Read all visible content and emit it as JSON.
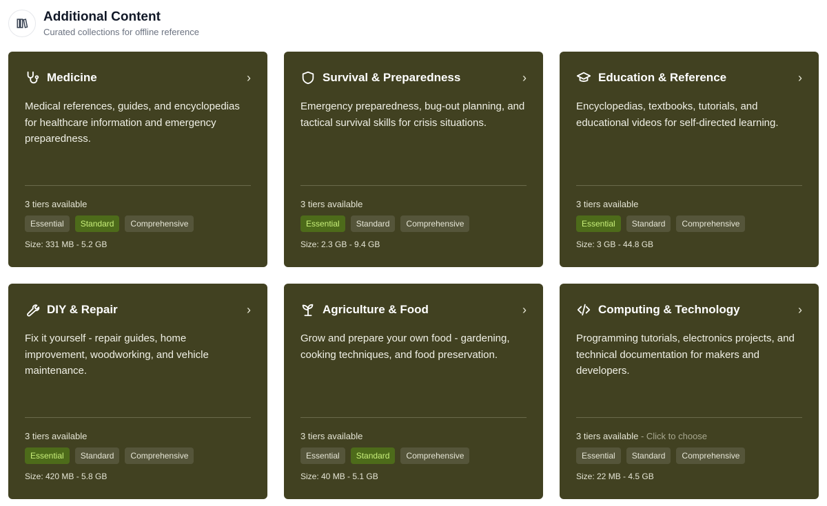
{
  "header": {
    "title": "Additional Content",
    "subtitle": "Curated collections for offline reference",
    "icon": "library-icon"
  },
  "cards": [
    {
      "title": "Medicine",
      "icon": "stethoscope-icon",
      "description": "Medical references, guides, and encyclopedias for healthcare information and emergency preparedness.",
      "tiers": "3 tiers available",
      "hint": "",
      "badges": [
        "Essential",
        "Standard",
        "Comprehensive"
      ],
      "selected": 1,
      "size": "Size: 331 MB - 5.2 GB"
    },
    {
      "title": "Survival & Preparedness",
      "icon": "shield-icon",
      "description": "Emergency preparedness, bug-out planning, and tactical survival skills for crisis situations.",
      "tiers": "3 tiers available",
      "hint": "",
      "badges": [
        "Essential",
        "Standard",
        "Comprehensive"
      ],
      "selected": 0,
      "size": "Size: 2.3 GB - 9.4 GB"
    },
    {
      "title": "Education & Reference",
      "icon": "graduation-cap-icon",
      "description": "Encyclopedias, textbooks, tutorials, and educational videos for self-directed learning.",
      "tiers": "3 tiers available",
      "hint": "",
      "badges": [
        "Essential",
        "Standard",
        "Comprehensive"
      ],
      "selected": 0,
      "size": "Size: 3 GB - 44.8 GB"
    },
    {
      "title": "DIY & Repair",
      "icon": "wrench-icon",
      "description": "Fix it yourself - repair guides, home improvement, woodworking, and vehicle maintenance.",
      "tiers": "3 tiers available",
      "hint": "",
      "badges": [
        "Essential",
        "Standard",
        "Comprehensive"
      ],
      "selected": 0,
      "size": "Size: 420 MB - 5.8 GB"
    },
    {
      "title": "Agriculture & Food",
      "icon": "sprout-icon",
      "description": "Grow and prepare your own food - gardening, cooking techniques, and food preservation.",
      "tiers": "3 tiers available",
      "hint": "",
      "badges": [
        "Essential",
        "Standard",
        "Comprehensive"
      ],
      "selected": 1,
      "size": "Size: 40 MB - 5.1 GB"
    },
    {
      "title": "Computing & Technology",
      "icon": "code-icon",
      "description": "Programming tutorials, electronics projects, and technical documentation for makers and developers.",
      "tiers": "3 tiers available",
      "hint": " - Click to choose",
      "badges": [
        "Essential",
        "Standard",
        "Comprehensive"
      ],
      "selected": -1,
      "size": "Size: 22 MB - 4.5 GB"
    }
  ],
  "colors": {
    "card": "#414121",
    "selected_badge": "#4d6b1a",
    "badge": "#55553a"
  }
}
